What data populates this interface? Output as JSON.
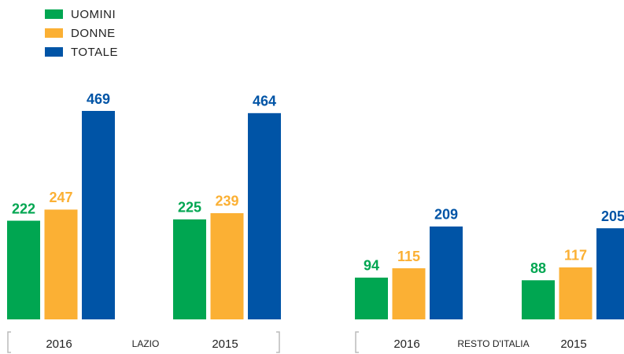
{
  "chart_data": {
    "type": "bar",
    "categories": [
      "2016",
      "2015",
      "2016",
      "2015"
    ],
    "groups": [
      "LAZIO",
      "RESTO D'ITALIA"
    ],
    "series": [
      {
        "name": "UOMINI",
        "color": "#00a651",
        "values": [
          222,
          225,
          94,
          88
        ]
      },
      {
        "name": "DONNE",
        "color": "#fbb034",
        "values": [
          247,
          239,
          115,
          117
        ]
      },
      {
        "name": "TOTALE",
        "color": "#0054a6",
        "values": [
          469,
          464,
          209,
          205
        ]
      }
    ]
  }
}
